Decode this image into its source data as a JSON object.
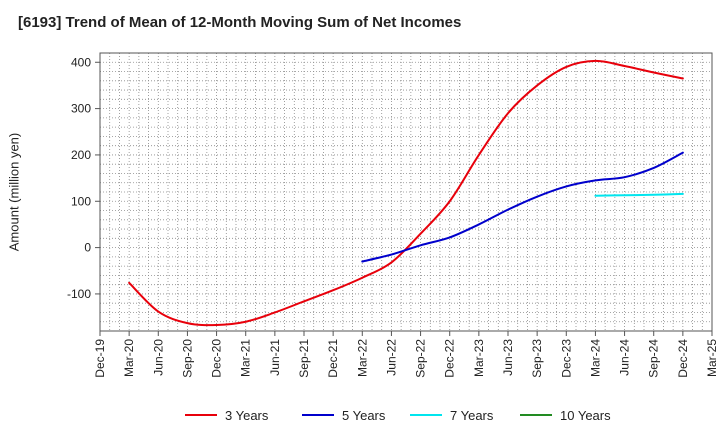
{
  "chart_data": {
    "type": "line",
    "title": "[6193]  Trend of Mean of 12-Month Moving Sum of Net Incomes",
    "xlabel": "",
    "ylabel": "Amount (million yen)",
    "ylim": [
      -180,
      420
    ],
    "yticks": [
      -100,
      0,
      100,
      200,
      300,
      400
    ],
    "grid": true,
    "legend_position": "bottom",
    "x_tick_labels": [
      "Dec-19",
      "Mar-20",
      "Jun-20",
      "Sep-20",
      "Dec-20",
      "Mar-21",
      "Jun-21",
      "Sep-21",
      "Dec-21",
      "Mar-22",
      "Jun-22",
      "Sep-22",
      "Dec-22",
      "Mar-23",
      "Jun-23",
      "Sep-23",
      "Dec-23",
      "Mar-24",
      "Jun-24",
      "Sep-24",
      "Dec-24",
      "Mar-25"
    ],
    "series": [
      {
        "name": "3 Years",
        "color": "#e8000b",
        "x": [
          "Mar-20",
          "Jun-20",
          "Sep-20",
          "Dec-20",
          "Mar-21",
          "Jun-21",
          "Sep-21",
          "Dec-21",
          "Mar-22",
          "Jun-22",
          "Sep-22",
          "Dec-22",
          "Mar-23",
          "Jun-23",
          "Sep-23",
          "Dec-23",
          "Mar-24",
          "Jun-24",
          "Sep-24",
          "Dec-24"
        ],
        "values": [
          -76,
          -138,
          -163,
          -167,
          -160,
          -140,
          -116,
          -92,
          -65,
          -32,
          30,
          100,
          200,
          290,
          350,
          390,
          403,
          392,
          378,
          365
        ]
      },
      {
        "name": "5 Years",
        "color": "#0000cc",
        "x": [
          "Mar-22",
          "Jun-22",
          "Sep-22",
          "Dec-22",
          "Mar-23",
          "Jun-23",
          "Sep-23",
          "Dec-23",
          "Mar-24",
          "Jun-24",
          "Sep-24",
          "Dec-24"
        ],
        "values": [
          -30,
          -15,
          5,
          22,
          50,
          82,
          110,
          132,
          145,
          152,
          172,
          205
        ]
      },
      {
        "name": "7 Years",
        "color": "#00e5ee",
        "x": [
          "Mar-24",
          "Jun-24",
          "Sep-24",
          "Dec-24"
        ],
        "values": [
          112,
          113,
          114,
          116
        ]
      },
      {
        "name": "10 Years",
        "color": "#228b22",
        "x": [],
        "values": []
      }
    ]
  }
}
